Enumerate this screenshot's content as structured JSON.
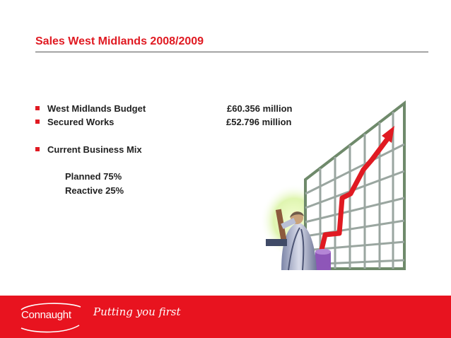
{
  "slide": {
    "title": "Sales West Midlands 2008/2009",
    "bullets": [
      {
        "label": "West Midlands  Budget",
        "value": "£60.356 million"
      },
      {
        "label": "Secured Works",
        "value": "£52.796 million"
      },
      {
        "label": "Current Business Mix",
        "value": ""
      }
    ],
    "business_mix": [
      "Planned  75%",
      "Reactive  25%"
    ]
  },
  "footer": {
    "company": "Connaught",
    "tagline": "Putting you first"
  },
  "colors": {
    "brand_red": "#e01a22",
    "footer_red": "#e8131f",
    "text": "#222222"
  },
  "icons": {
    "bullet": "red-square",
    "clipart": "growth-chart-with-figure"
  }
}
